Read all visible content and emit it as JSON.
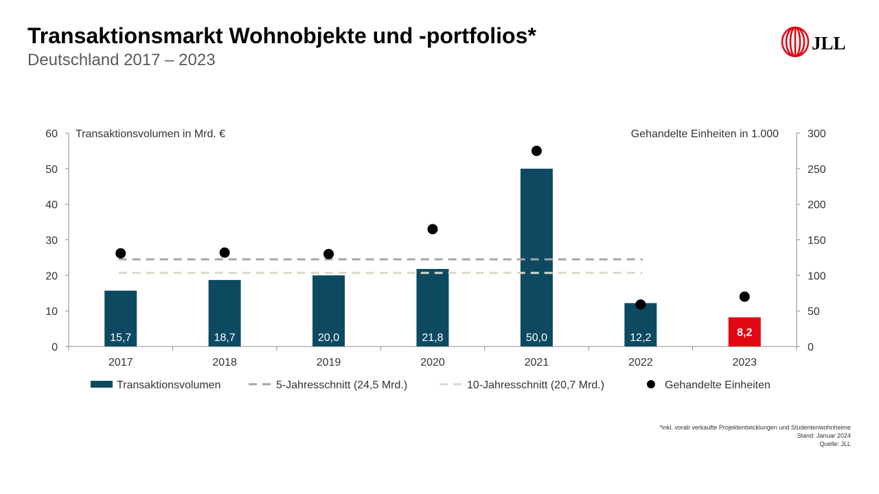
{
  "header": {
    "title": "Transaktionsmarkt Wohnobjekte und -portfolios*",
    "subtitle": "Deutschland 2017 – 2023"
  },
  "logo": {
    "text": "JLL",
    "icon": "jll-flame-logo-icon"
  },
  "footnotes": {
    "note": "*inkl. vorab verkaufte Projektentwicklungen und Studentenwohnheime",
    "date": "Stand: Januar 2024",
    "source": "Quelle: JLL"
  },
  "colors": {
    "bar": "#0d4a62",
    "highlight": "#e30613",
    "avg5": "#a6a6a6",
    "avg10": "#dcd8c8",
    "dots": "#000000"
  },
  "chart_data": {
    "type": "bar",
    "categories": [
      "2017",
      "2018",
      "2019",
      "2020",
      "2021",
      "2022",
      "2023"
    ],
    "y_left_label": "Transaktionsvolumen in Mrd. €",
    "y_right_label": "Gehandelte Einheiten in 1.000",
    "ylim_left": [
      0,
      60
    ],
    "yticks_left": [
      "0",
      "10",
      "20",
      "30",
      "40",
      "50",
      "60"
    ],
    "ylim_right": [
      0,
      300
    ],
    "yticks_right": [
      "0",
      "50",
      "100",
      "150",
      "200",
      "250",
      "300"
    ],
    "grid": false,
    "legend_position": "bottom",
    "series": [
      {
        "name": "Transaktionsvolumen",
        "type": "bar",
        "axis": "left",
        "values": [
          15.7,
          18.7,
          20.0,
          21.8,
          50.0,
          12.2,
          8.2
        ],
        "labels": [
          "15,7",
          "18,7",
          "20,0",
          "21,8",
          "50,0",
          "12,2",
          "8,2"
        ],
        "highlight_index": 6
      },
      {
        "name": "5-Jahresschnitt (24,5 Mrd.)",
        "type": "line",
        "style": "dashed",
        "axis": "left",
        "value": 24.5,
        "x_range": [
          "2017",
          "2022"
        ]
      },
      {
        "name": "10-Jahresschnitt (20,7 Mrd.)",
        "type": "line",
        "style": "dashed",
        "axis": "left",
        "value": 20.7,
        "x_range": [
          "2017",
          "2022"
        ]
      },
      {
        "name": "Gehandelte Einheiten",
        "type": "scatter",
        "axis": "right",
        "values": [
          131,
          132,
          130,
          165,
          275,
          59,
          70
        ]
      }
    ]
  }
}
